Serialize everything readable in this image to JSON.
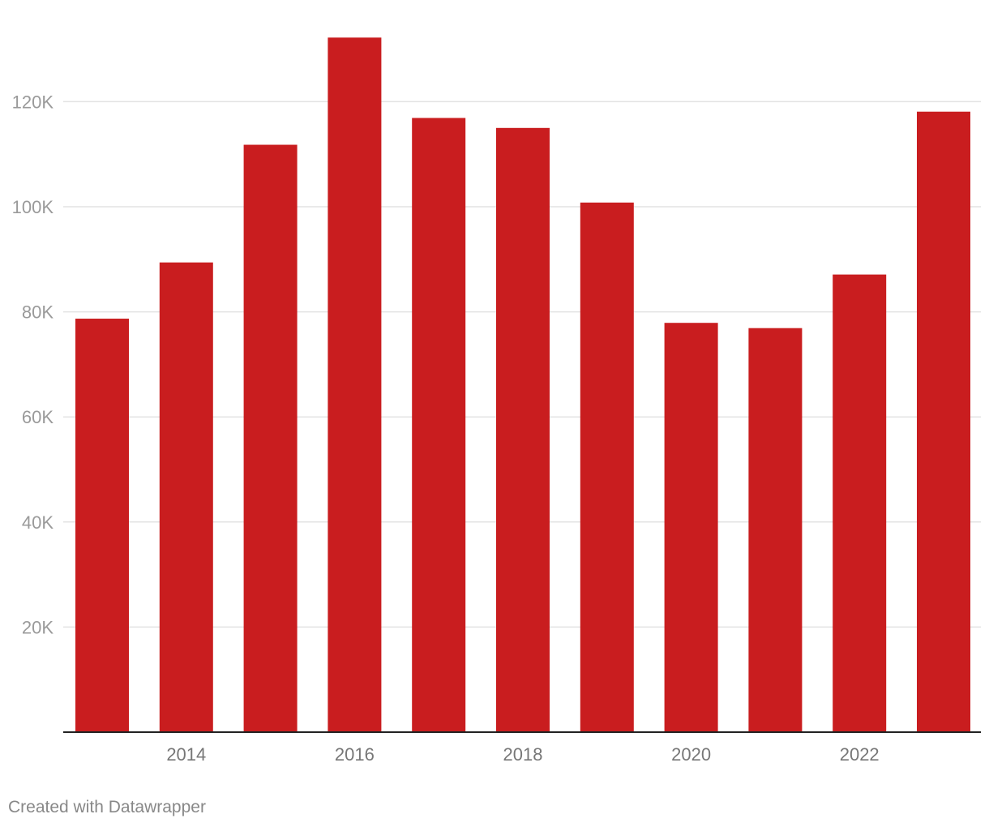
{
  "chart_data": {
    "type": "bar",
    "title": "",
    "xlabel": "",
    "ylabel": "",
    "categories": [
      "2013",
      "2014",
      "2015",
      "2016",
      "2017",
      "2018",
      "2019",
      "2020",
      "2021",
      "2022",
      "2023"
    ],
    "values": [
      78700,
      89400,
      111800,
      132200,
      116900,
      115000,
      100800,
      77900,
      76900,
      87100,
      118100
    ],
    "x_tick_labels": [
      "2014",
      "2016",
      "2018",
      "2020",
      "2022"
    ],
    "y_ticks": [
      {
        "value": 20000,
        "label": "20K"
      },
      {
        "value": 40000,
        "label": "40K"
      },
      {
        "value": 60000,
        "label": "60K"
      },
      {
        "value": 80000,
        "label": "80K"
      },
      {
        "value": 100000,
        "label": "100K"
      },
      {
        "value": 120000,
        "label": "120K"
      }
    ],
    "ylim": [
      0,
      132200
    ],
    "grid": true,
    "bar_color": "#c91d1f"
  },
  "footer": {
    "credit": "Created with Datawrapper"
  }
}
